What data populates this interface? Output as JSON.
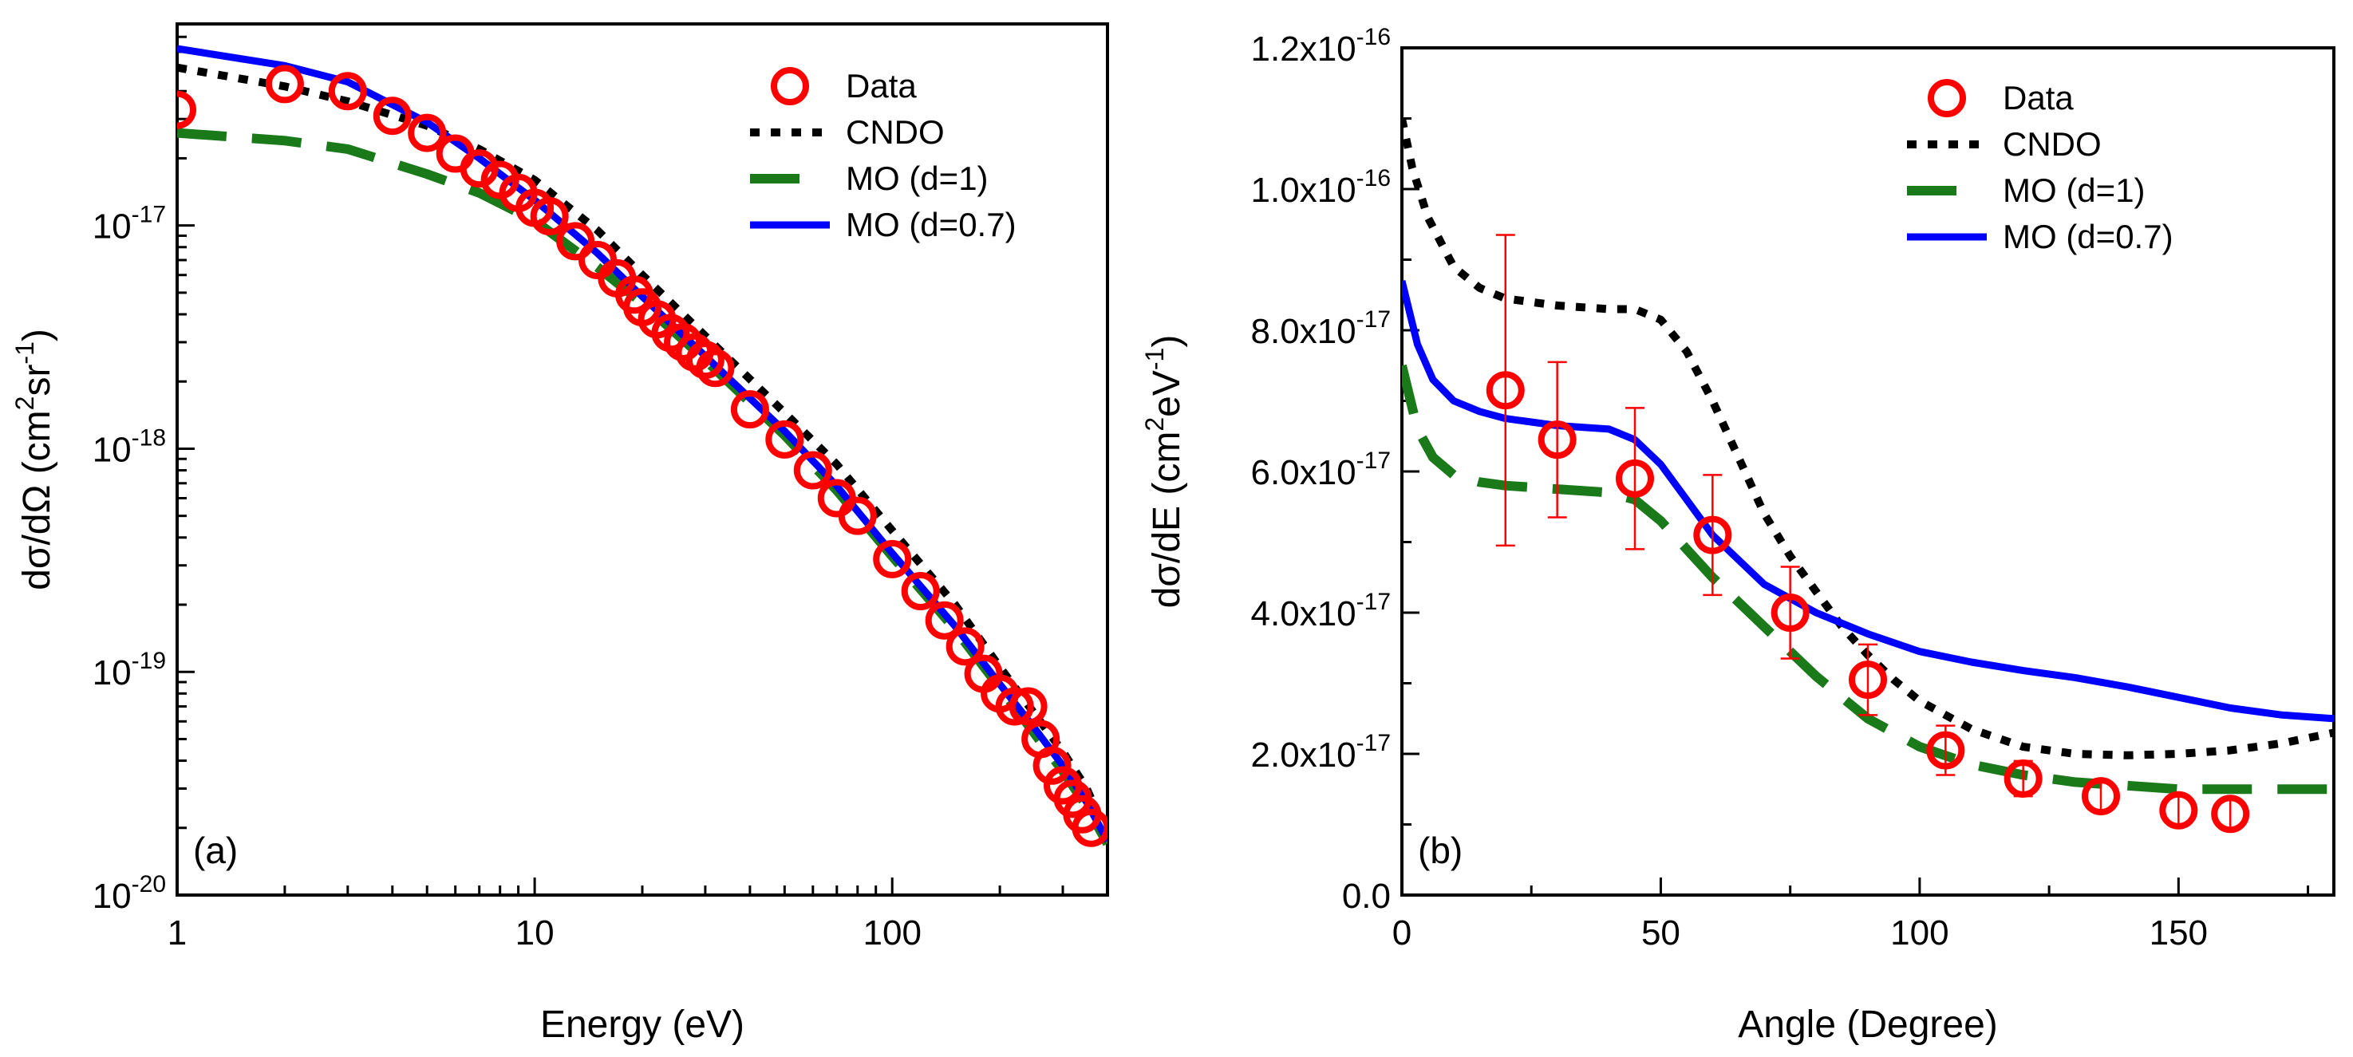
{
  "chart_data": [
    {
      "type": "line",
      "panel_label": "(a)",
      "xlabel": "Energy (eV)",
      "ylabel_main": "dσ/dΩ (cm",
      "ylabel_sup1": "2",
      "ylabel_mid": "sr",
      "ylabel_sup2": "-1",
      "ylabel_end": ")",
      "x_scale": "log",
      "y_scale": "log",
      "xlim": [
        1,
        400
      ],
      "ylim": [
        1e-20,
        8e-17
      ],
      "x_ticks": [
        {
          "value": 1,
          "label": "1"
        },
        {
          "value": 10,
          "label": "10"
        },
        {
          "value": 100,
          "label": "100"
        }
      ],
      "y_ticks": [
        {
          "value": 1e-20,
          "base": "10",
          "exp": "-20"
        },
        {
          "value": 1e-19,
          "base": "10",
          "exp": "-19"
        },
        {
          "value": 1e-18,
          "base": "10",
          "exp": "-18"
        },
        {
          "value": 1e-17,
          "base": "10",
          "exp": "-17"
        }
      ],
      "legend_position": "top-right",
      "series": [
        {
          "name": "Data",
          "style": "circle",
          "color": "#ff0000",
          "x": [
            1,
            2,
            3,
            4,
            5,
            6,
            7,
            8,
            9,
            10,
            11,
            13,
            15,
            17,
            19,
            20,
            22,
            24,
            26,
            28,
            30,
            32,
            40,
            50,
            60,
            70,
            80,
            100,
            120,
            140,
            160,
            180,
            200,
            220,
            240,
            260,
            280,
            300,
            320,
            340,
            360
          ],
          "y": [
            3.3e-17,
            4.3e-17,
            4e-17,
            3.1e-17,
            2.6e-17,
            2.1e-17,
            1.8e-17,
            1.6e-17,
            1.4e-17,
            1.2e-17,
            1.1e-17,
            8.5e-18,
            7e-18,
            5.8e-18,
            4.9e-18,
            4.3e-18,
            3.8e-18,
            3.3e-18,
            3e-18,
            2.7e-18,
            2.5e-18,
            2.3e-18,
            1.5e-18,
            1.1e-18,
            8e-19,
            6e-19,
            5e-19,
            3.2e-19,
            2.3e-19,
            1.7e-19,
            1.3e-19,
            9.8e-20,
            8e-20,
            7e-20,
            7e-20,
            5e-20,
            3.8e-20,
            3.1e-20,
            2.7e-20,
            2.3e-20,
            2e-20
          ]
        },
        {
          "name": "CNDO",
          "style": "dotted",
          "color": "#000000",
          "x": [
            1,
            2,
            3,
            5,
            7,
            10,
            15,
            20,
            30,
            50,
            70,
            100,
            150,
            200,
            250,
            300,
            350,
            400
          ],
          "y": [
            5.1e-17,
            4.2e-17,
            3.6e-17,
            2.8e-17,
            2.2e-17,
            1.6e-17,
            9.5e-18,
            6e-18,
            3.2e-18,
            1.45e-18,
            8.5e-19,
            4.3e-19,
            2e-19,
            1.05e-19,
            6.5e-20,
            4.4e-20,
            3e-20,
            1.85e-20
          ]
        },
        {
          "name": "MO (d=1)",
          "style": "dashed",
          "color": "#1a7a1a",
          "x": [
            1,
            2,
            3,
            5,
            7,
            10,
            15,
            20,
            30,
            50,
            70,
            100,
            150,
            200,
            250,
            300,
            350,
            400
          ],
          "y": [
            2.6e-17,
            2.4e-17,
            2.2e-17,
            1.7e-17,
            1.4e-17,
            1.05e-17,
            6.5e-18,
            4.5e-18,
            2.5e-18,
            1.15e-18,
            6.5e-19,
            3.3e-19,
            1.55e-19,
            8.5e-20,
            5.3e-20,
            3.6e-20,
            2.5e-20,
            1.7e-20
          ]
        },
        {
          "name": "MO (d=0.7)",
          "style": "solid",
          "color": "#0000ff",
          "x": [
            1,
            2,
            3,
            5,
            7,
            10,
            15,
            20,
            30,
            50,
            70,
            100,
            150,
            200,
            250,
            300,
            350,
            400
          ],
          "y": [
            6.2e-17,
            5.2e-17,
            4.4e-17,
            2.9e-17,
            2e-17,
            1.3e-17,
            7.5e-18,
            4.8e-18,
            2.6e-18,
            1.2e-18,
            6.8e-19,
            3.4e-19,
            1.6e-19,
            8.8e-20,
            5.6e-20,
            3.8e-20,
            2.6e-20,
            1.75e-20
          ]
        }
      ]
    },
    {
      "type": "line",
      "panel_label": "(b)",
      "xlabel": "Angle (Degree)",
      "ylabel_main": "dσ/dE (cm",
      "ylabel_sup1": "2",
      "ylabel_mid": "eV",
      "ylabel_sup2": "-1",
      "ylabel_end": ")",
      "x_scale": "linear",
      "y_scale": "linear",
      "xlim": [
        0,
        180
      ],
      "ylim": [
        0,
        1.2e-16
      ],
      "x_ticks": [
        {
          "value": 0,
          "label": "0"
        },
        {
          "value": 50,
          "label": "50"
        },
        {
          "value": 100,
          "label": "100"
        },
        {
          "value": 150,
          "label": "150"
        }
      ],
      "y_ticks": [
        {
          "value": 0,
          "base": "0.0",
          "exp": ""
        },
        {
          "value": 2e-17,
          "base": "2.0x10",
          "exp": "-17"
        },
        {
          "value": 4e-17,
          "base": "4.0x10",
          "exp": "-17"
        },
        {
          "value": 6e-17,
          "base": "6.0x10",
          "exp": "-17"
        },
        {
          "value": 8e-17,
          "base": "8.0x10",
          "exp": "-17"
        },
        {
          "value": 1e-16,
          "base": "1.0x10",
          "exp": "-16"
        },
        {
          "value": 1.2e-16,
          "base": "1.2x10",
          "exp": "-16"
        }
      ],
      "legend_position": "top-right",
      "series": [
        {
          "name": "Data",
          "style": "circle",
          "color": "#ff0000",
          "x": [
            20,
            30,
            45,
            60,
            75,
            90,
            105,
            120,
            135,
            150,
            160
          ],
          "y": [
            7.15e-17,
            6.45e-17,
            5.9e-17,
            5.1e-17,
            4e-17,
            3.05e-17,
            2.05e-17,
            1.65e-17,
            1.4e-17,
            1.2e-17,
            1.15e-17
          ],
          "err": [
            2.2e-17,
            1.1e-17,
            1e-17,
            8.5e-18,
            6.5e-18,
            5e-18,
            3.5e-18,
            2.5e-18,
            2e-18,
            2e-18,
            2e-18
          ]
        },
        {
          "name": "CNDO",
          "style": "dotted",
          "color": "#000000",
          "x": [
            0,
            2,
            5,
            10,
            15,
            20,
            30,
            40,
            45,
            50,
            55,
            60,
            65,
            70,
            75,
            80,
            85,
            90,
            95,
            100,
            110,
            120,
            130,
            140,
            150,
            160,
            170,
            180
          ],
          "y": [
            1.1e-16,
            1.03e-16,
            9.6e-17,
            8.9e-17,
            8.6e-17,
            8.45e-17,
            8.35e-17,
            8.3e-17,
            8.3e-17,
            8.15e-17,
            7.7e-17,
            7e-17,
            6.2e-17,
            5.4e-17,
            4.8e-17,
            4.3e-17,
            3.8e-17,
            3.4e-17,
            3.05e-17,
            2.75e-17,
            2.35e-17,
            2.1e-17,
            2e-17,
            1.98e-17,
            2e-17,
            2.05e-17,
            2.15e-17,
            2.3e-17
          ]
        },
        {
          "name": "MO (d=1)",
          "style": "dashed",
          "color": "#1a7a1a",
          "x": [
            0,
            3,
            6,
            10,
            15,
            20,
            30,
            40,
            45,
            50,
            55,
            60,
            65,
            70,
            80,
            90,
            100,
            110,
            120,
            130,
            140,
            150,
            160,
            170,
            180
          ],
          "y": [
            7.5e-17,
            6.6e-17,
            6.2e-17,
            5.95e-17,
            5.85e-17,
            5.8e-17,
            5.75e-17,
            5.7e-17,
            5.6e-17,
            5.3e-17,
            4.9e-17,
            4.5e-17,
            4.15e-17,
            3.8e-17,
            3.1e-17,
            2.5e-17,
            2.1e-17,
            1.85e-17,
            1.7e-17,
            1.6e-17,
            1.55e-17,
            1.5e-17,
            1.5e-17,
            1.5e-17,
            1.5e-17
          ]
        },
        {
          "name": "MO (d=0.7)",
          "style": "solid",
          "color": "#0000ff",
          "x": [
            0,
            3,
            6,
            10,
            15,
            20,
            30,
            40,
            45,
            50,
            55,
            60,
            70,
            80,
            90,
            100,
            110,
            120,
            130,
            140,
            150,
            160,
            170,
            180
          ],
          "y": [
            8.7e-17,
            7.8e-17,
            7.3e-17,
            7e-17,
            6.85e-17,
            6.75e-17,
            6.65e-17,
            6.6e-17,
            6.45e-17,
            6.1e-17,
            5.6e-17,
            5.1e-17,
            4.4e-17,
            4e-17,
            3.7e-17,
            3.45e-17,
            3.3e-17,
            3.18e-17,
            3.08e-17,
            2.95e-17,
            2.8e-17,
            2.65e-17,
            2.55e-17,
            2.5e-17
          ]
        }
      ]
    }
  ]
}
